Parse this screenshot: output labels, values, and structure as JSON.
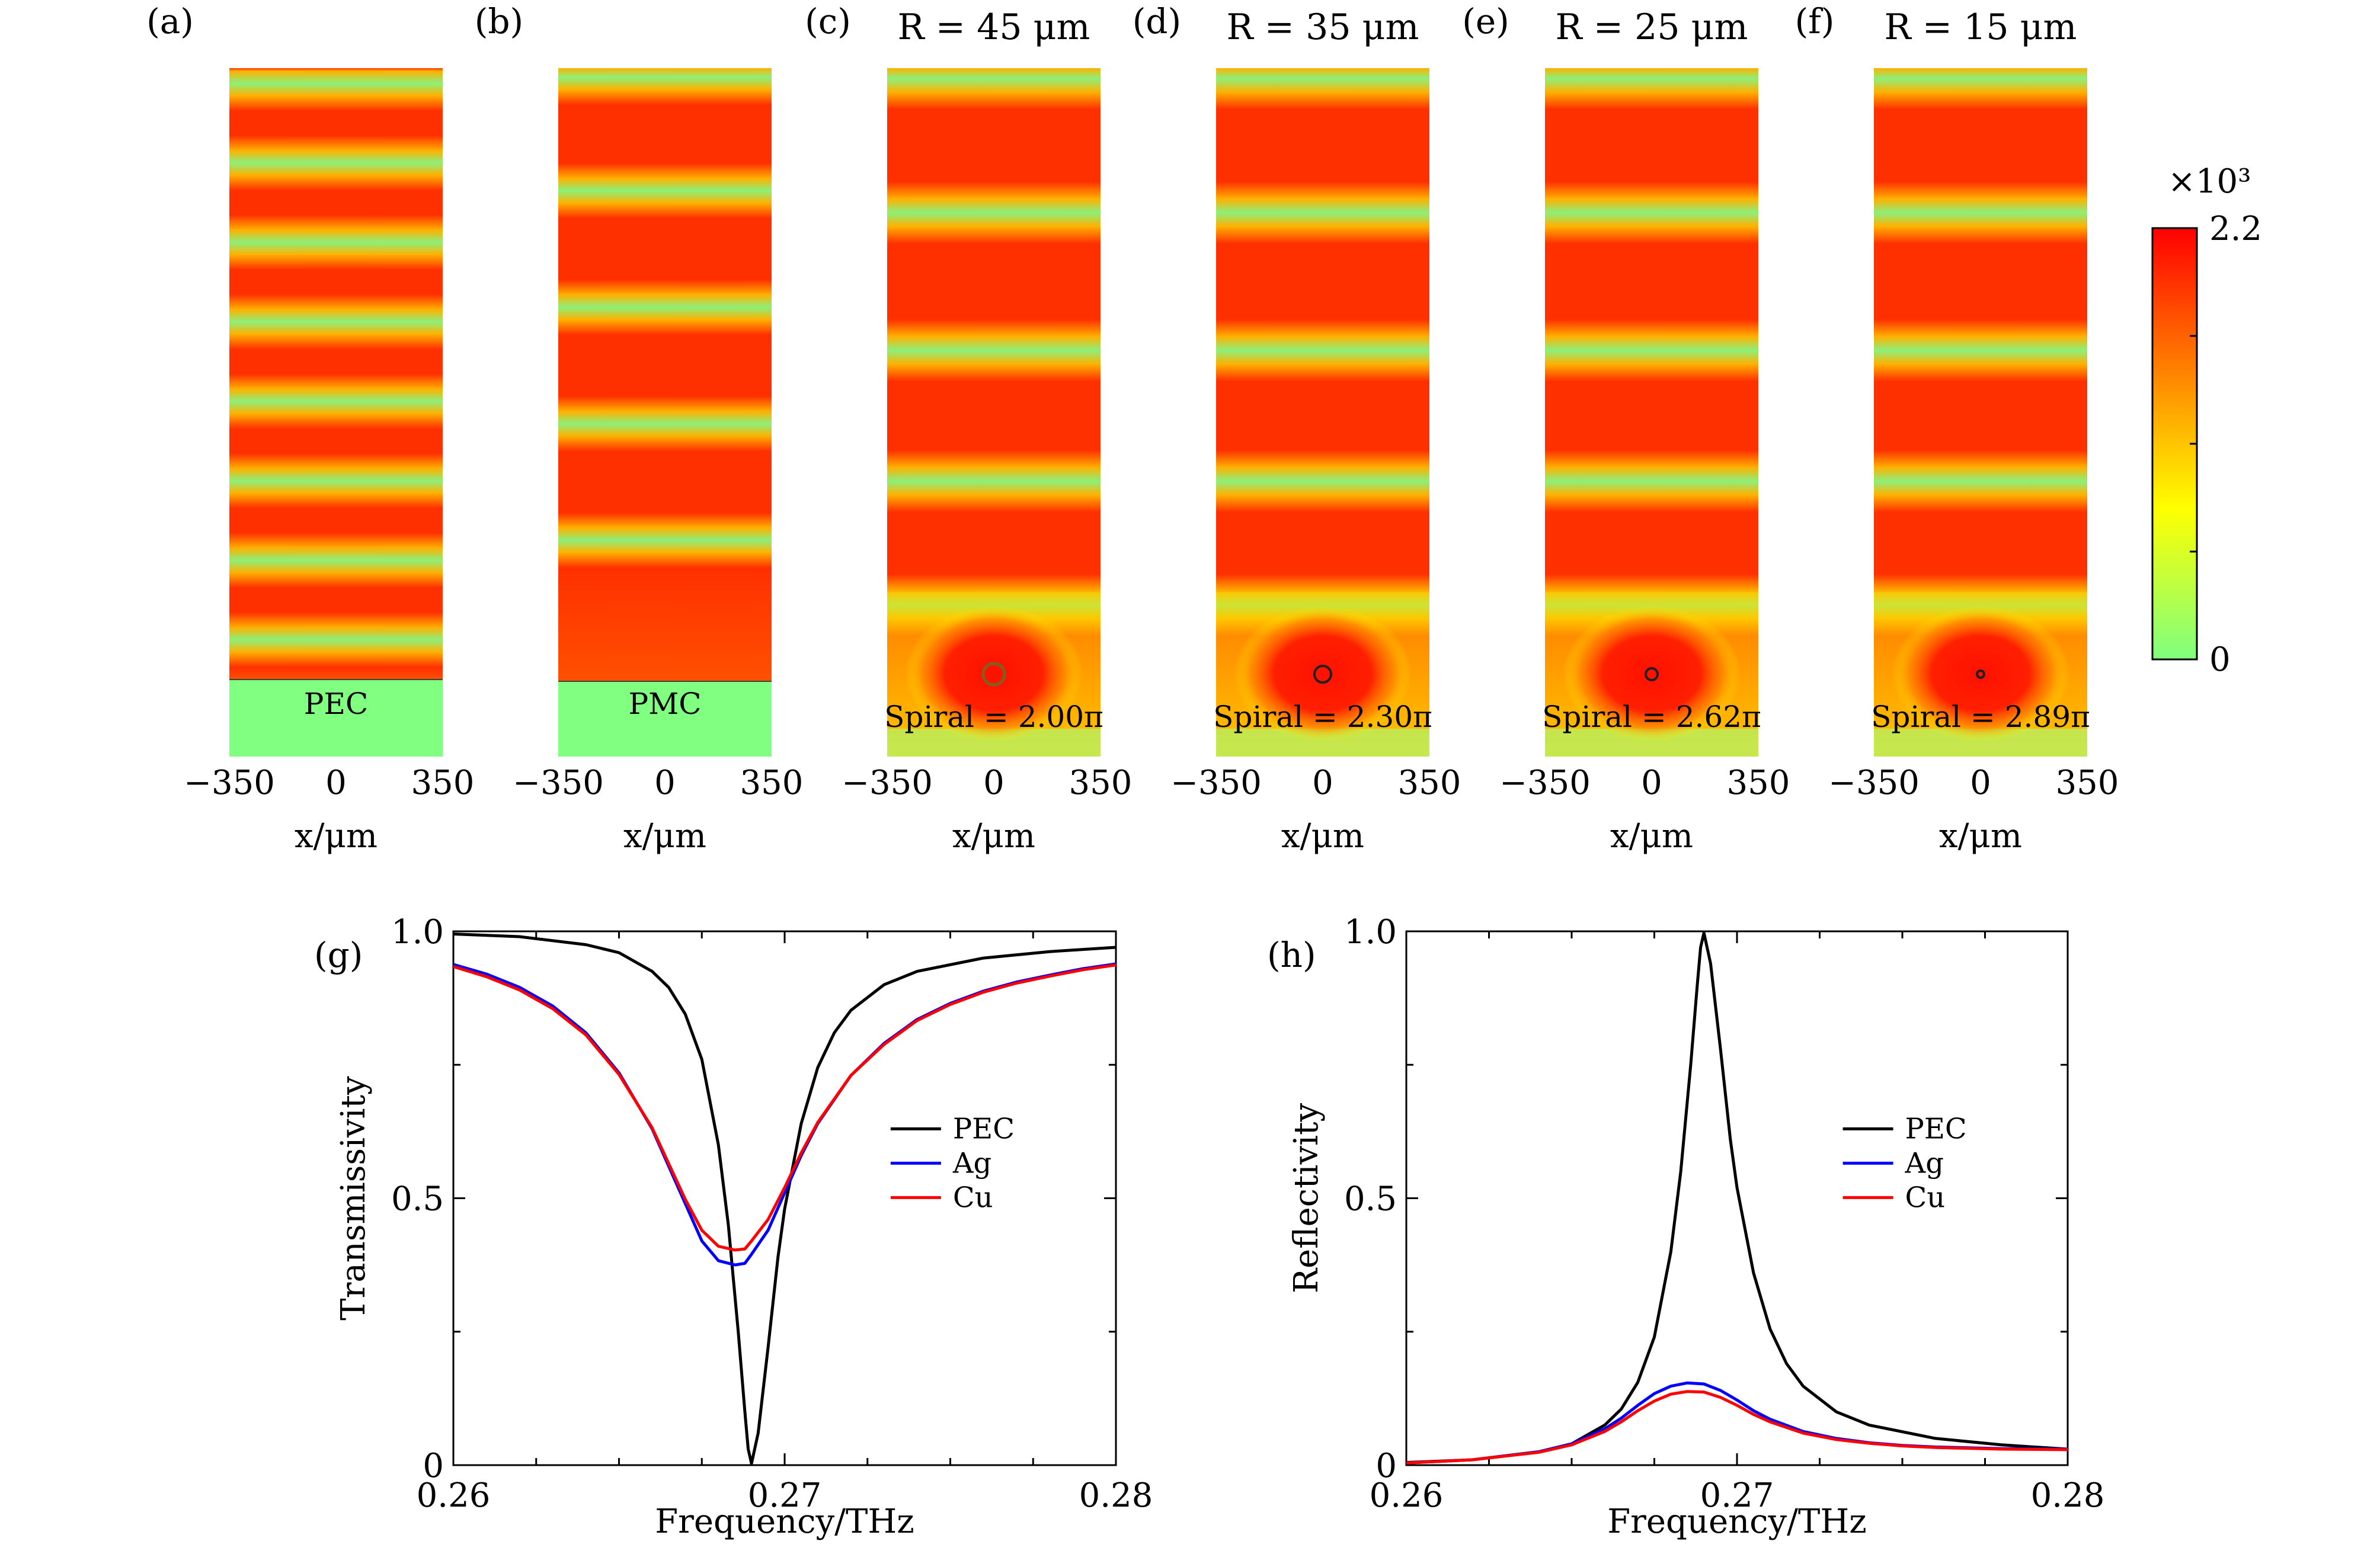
{
  "field_panels": [
    {
      "label": "(a)",
      "title": "",
      "annotation": "PEC",
      "boundary": "PEC",
      "spiral": "",
      "xticks": [
        "−350",
        "0",
        "350"
      ],
      "xlabel": "x/μm"
    },
    {
      "label": "(b)",
      "title": "",
      "annotation": "PMC",
      "boundary": "PMC",
      "spiral": "",
      "xticks": [
        "−350",
        "0",
        "350"
      ],
      "xlabel": "x/μm"
    },
    {
      "label": "(c)",
      "title": "R = 45 μm",
      "annotation": "",
      "boundary": "",
      "spiral": "Spiral = 2.00π",
      "xticks": [
        "−350",
        "0",
        "350"
      ],
      "xlabel": "x/μm"
    },
    {
      "label": "(d)",
      "title": "R = 35 μm",
      "annotation": "",
      "boundary": "",
      "spiral": "Spiral = 2.30π",
      "xticks": [
        "−350",
        "0",
        "350"
      ],
      "xlabel": "x/μm"
    },
    {
      "label": "(e)",
      "title": "R = 25 μm",
      "annotation": "",
      "boundary": "",
      "spiral": "Spiral = 2.62π",
      "xticks": [
        "−350",
        "0",
        "350"
      ],
      "xlabel": "x/μm"
    },
    {
      "label": "(f)",
      "title": "R = 15 μm",
      "annotation": "",
      "boundary": "",
      "spiral": "Spiral = 2.89π",
      "xticks": [
        "−350",
        "0",
        "350"
      ],
      "xlabel": "x/μm"
    }
  ],
  "colorbar": {
    "multiplier": "×10³",
    "max_label": "2.2",
    "min_label": "0",
    "range": [
      0,
      2.2
    ],
    "colors": [
      "#ff0000",
      "#ffff00",
      "#7fff7f"
    ]
  },
  "chart_data": [
    {
      "type": "line",
      "panel_label": "(g)",
      "xlabel": "Frequency/THz",
      "ylabel": "Transmissivity",
      "xlim": [
        0.26,
        0.28
      ],
      "ylim": [
        0,
        1
      ],
      "xticks": [
        0.26,
        0.27,
        0.28
      ],
      "xtick_labels": [
        "0.26",
        "0.27",
        "0.28"
      ],
      "yticks": [
        0,
        0.5,
        1
      ],
      "ytick_labels": [
        "0",
        "0.5",
        "1.0"
      ],
      "legend_position": "center-right",
      "series": [
        {
          "name": "PEC",
          "color": "#000000",
          "x": [
            0.26,
            0.262,
            0.264,
            0.265,
            0.266,
            0.2665,
            0.267,
            0.2675,
            0.268,
            0.2683,
            0.2686,
            0.2688,
            0.2689,
            0.269,
            0.2692,
            0.2695,
            0.2698,
            0.27,
            0.2705,
            0.271,
            0.2715,
            0.272,
            0.273,
            0.274,
            0.276,
            0.278,
            0.28
          ],
          "y": [
            0.995,
            0.99,
            0.975,
            0.96,
            0.925,
            0.895,
            0.845,
            0.76,
            0.6,
            0.45,
            0.25,
            0.1,
            0.03,
            0.003,
            0.06,
            0.22,
            0.39,
            0.48,
            0.64,
            0.745,
            0.81,
            0.852,
            0.9,
            0.925,
            0.95,
            0.962,
            0.97
          ]
        },
        {
          "name": "Ag",
          "color": "#0000ff",
          "x": [
            0.26,
            0.261,
            0.262,
            0.263,
            0.264,
            0.265,
            0.266,
            0.2665,
            0.267,
            0.2675,
            0.268,
            0.2685,
            0.2688,
            0.269,
            0.2695,
            0.27,
            0.2705,
            0.271,
            0.272,
            0.273,
            0.274,
            0.275,
            0.276,
            0.277,
            0.278,
            0.279,
            0.28
          ],
          "y": [
            0.938,
            0.92,
            0.895,
            0.86,
            0.81,
            0.735,
            0.63,
            0.56,
            0.49,
            0.42,
            0.383,
            0.375,
            0.378,
            0.395,
            0.44,
            0.51,
            0.58,
            0.64,
            0.73,
            0.79,
            0.835,
            0.865,
            0.888,
            0.905,
            0.918,
            0.93,
            0.939
          ]
        },
        {
          "name": "Cu",
          "color": "#ff0000",
          "x": [
            0.26,
            0.261,
            0.262,
            0.263,
            0.264,
            0.265,
            0.266,
            0.2665,
            0.267,
            0.2675,
            0.268,
            0.2685,
            0.2688,
            0.269,
            0.2695,
            0.27,
            0.2705,
            0.271,
            0.272,
            0.273,
            0.274,
            0.275,
            0.276,
            0.277,
            0.278,
            0.279,
            0.28
          ],
          "y": [
            0.934,
            0.915,
            0.89,
            0.855,
            0.806,
            0.732,
            0.632,
            0.565,
            0.498,
            0.44,
            0.41,
            0.403,
            0.405,
            0.42,
            0.46,
            0.52,
            0.585,
            0.642,
            0.73,
            0.788,
            0.833,
            0.863,
            0.886,
            0.903,
            0.916,
            0.928,
            0.937
          ]
        }
      ]
    },
    {
      "type": "line",
      "panel_label": "(h)",
      "xlabel": "Frequency/THz",
      "ylabel": "Reflectivity",
      "xlim": [
        0.26,
        0.28
      ],
      "ylim": [
        0,
        1
      ],
      "xticks": [
        0.26,
        0.27,
        0.28
      ],
      "xtick_labels": [
        "0.26",
        "0.27",
        "0.28"
      ],
      "yticks": [
        0,
        0.5,
        1
      ],
      "ytick_labels": [
        "0",
        "0.5",
        "1.0"
      ],
      "legend_position": "center-right",
      "series": [
        {
          "name": "PEC",
          "color": "#000000",
          "x": [
            0.26,
            0.262,
            0.264,
            0.265,
            0.266,
            0.2665,
            0.267,
            0.2675,
            0.268,
            0.2683,
            0.2686,
            0.2688,
            0.2689,
            0.269,
            0.2692,
            0.2695,
            0.2698,
            0.27,
            0.2705,
            0.271,
            0.2715,
            0.272,
            0.273,
            0.274,
            0.276,
            0.278,
            0.28
          ],
          "y": [
            0.005,
            0.01,
            0.025,
            0.04,
            0.075,
            0.105,
            0.155,
            0.24,
            0.4,
            0.55,
            0.75,
            0.9,
            0.97,
            0.997,
            0.94,
            0.78,
            0.61,
            0.52,
            0.36,
            0.255,
            0.19,
            0.148,
            0.1,
            0.075,
            0.05,
            0.038,
            0.03
          ]
        },
        {
          "name": "Ag",
          "color": "#0000ff",
          "x": [
            0.26,
            0.262,
            0.264,
            0.265,
            0.266,
            0.2665,
            0.267,
            0.2675,
            0.268,
            0.2685,
            0.269,
            0.2695,
            0.27,
            0.2705,
            0.271,
            0.272,
            0.273,
            0.274,
            0.275,
            0.276,
            0.278,
            0.28
          ],
          "y": [
            0.004,
            0.01,
            0.025,
            0.04,
            0.068,
            0.088,
            0.112,
            0.134,
            0.148,
            0.154,
            0.152,
            0.14,
            0.122,
            0.102,
            0.086,
            0.063,
            0.05,
            0.042,
            0.037,
            0.034,
            0.031,
            0.03
          ]
        },
        {
          "name": "Cu",
          "color": "#ff0000",
          "x": [
            0.26,
            0.262,
            0.264,
            0.265,
            0.266,
            0.2665,
            0.267,
            0.2675,
            0.268,
            0.2685,
            0.269,
            0.2695,
            0.27,
            0.2705,
            0.271,
            0.272,
            0.273,
            0.274,
            0.275,
            0.276,
            0.278,
            0.28
          ],
          "y": [
            0.004,
            0.01,
            0.024,
            0.038,
            0.063,
            0.081,
            0.102,
            0.12,
            0.133,
            0.138,
            0.137,
            0.127,
            0.112,
            0.095,
            0.081,
            0.06,
            0.048,
            0.041,
            0.036,
            0.033,
            0.03,
            0.029
          ]
        }
      ]
    }
  ]
}
